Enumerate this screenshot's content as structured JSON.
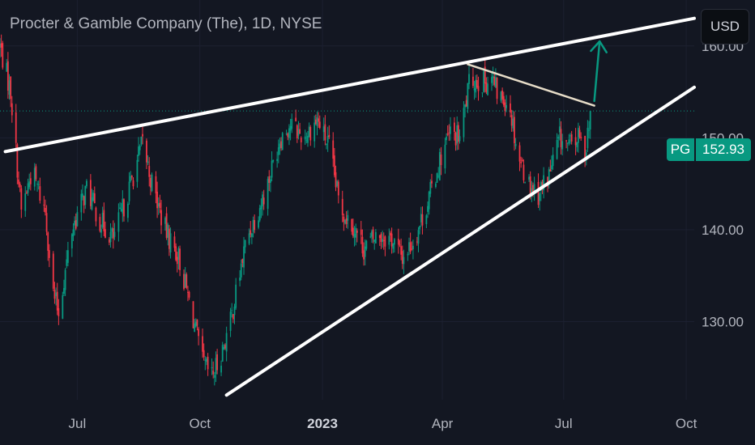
{
  "header": {
    "title": "Procter & Gamble Company (The), 1D, NYSE",
    "currency_label": "USD"
  },
  "price_tag": {
    "symbol": "PG",
    "value": "152.93"
  },
  "colors": {
    "background": "#131722",
    "up": "#089981",
    "down": "#f23645",
    "trendline": "#ffffff",
    "short_line": "#e6dcc8",
    "arrow": "#089981",
    "axis_text": "#b2b5be",
    "grid": "#1c2030"
  },
  "chart_data": {
    "type": "candlestick",
    "symbol": "PG",
    "interval": "1D",
    "exchange": "NYSE",
    "last_price": 152.93,
    "x_range": [
      "2022-05-04",
      "2023-10-07"
    ],
    "y_range": [
      121.5,
      165.0
    ],
    "y_ticks": [
      {
        "value": 130,
        "label": "130.00"
      },
      {
        "value": 140,
        "label": "140.00"
      },
      {
        "value": 150,
        "label": "150.00"
      },
      {
        "value": 160,
        "label": "160.00"
      }
    ],
    "x_ticks": [
      {
        "date": "2022-07-01",
        "label": "Jul",
        "bold": false
      },
      {
        "date": "2022-10-01",
        "label": "Oct",
        "bold": false
      },
      {
        "date": "2023-01-01",
        "label": "2023",
        "bold": true
      },
      {
        "date": "2023-04-01",
        "label": "Apr",
        "bold": false
      },
      {
        "date": "2023-07-01",
        "label": "Jul",
        "bold": false
      },
      {
        "date": "2023-10-01",
        "label": "Oct",
        "bold": false
      }
    ],
    "close_path": [
      [
        "2022-05-04",
        160.0
      ],
      [
        "2022-05-12",
        155.0
      ],
      [
        "2022-05-20",
        142.0
      ],
      [
        "2022-05-28",
        146.5
      ],
      [
        "2022-06-07",
        142.0
      ],
      [
        "2022-06-13",
        133.0
      ],
      [
        "2022-06-17",
        131.0
      ],
      [
        "2022-06-27",
        140.0
      ],
      [
        "2022-07-08",
        144.5
      ],
      [
        "2022-07-18",
        141.0
      ],
      [
        "2022-07-28",
        139.0
      ],
      [
        "2022-08-08",
        144.0
      ],
      [
        "2022-08-19",
        149.5
      ],
      [
        "2022-08-26",
        145.0
      ],
      [
        "2022-09-05",
        140.0
      ],
      [
        "2022-09-15",
        137.0
      ],
      [
        "2022-09-25",
        131.0
      ],
      [
        "2022-10-03",
        125.5
      ],
      [
        "2022-10-10",
        124.0
      ],
      [
        "2022-10-16",
        126.0
      ],
      [
        "2022-10-24",
        130.0
      ],
      [
        "2022-11-05",
        139.0
      ],
      [
        "2022-11-20",
        144.5
      ],
      [
        "2022-11-30",
        150.0
      ],
      [
        "2022-12-08",
        151.5
      ],
      [
        "2022-12-18",
        150.0
      ],
      [
        "2022-12-28",
        152.0
      ],
      [
        "2023-01-06",
        149.0
      ],
      [
        "2023-01-14",
        142.5
      ],
      [
        "2023-01-24",
        140.5
      ],
      [
        "2023-02-01",
        138.0
      ],
      [
        "2023-02-12",
        139.5
      ],
      [
        "2023-02-22",
        139.0
      ],
      [
        "2023-03-02",
        137.0
      ],
      [
        "2023-03-11",
        139.0
      ],
      [
        "2023-03-21",
        143.0
      ],
      [
        "2023-03-31",
        148.0
      ],
      [
        "2023-04-07",
        150.5
      ],
      [
        "2023-04-14",
        150.0
      ],
      [
        "2023-04-22",
        156.5
      ],
      [
        "2023-05-01",
        156.0
      ],
      [
        "2023-05-08",
        156.5
      ],
      [
        "2023-05-13",
        154.5
      ],
      [
        "2023-05-21",
        154.0
      ],
      [
        "2023-05-28",
        148.0
      ],
      [
        "2023-06-05",
        145.0
      ],
      [
        "2023-06-12",
        144.0
      ],
      [
        "2023-06-20",
        146.0
      ],
      [
        "2023-06-28",
        150.0
      ],
      [
        "2023-07-05",
        149.0
      ],
      [
        "2023-07-12",
        150.0
      ],
      [
        "2023-07-17",
        148.5
      ],
      [
        "2023-07-21",
        152.93
      ]
    ],
    "drawings": [
      {
        "kind": "trendline",
        "name": "upper-resistance",
        "from": [
          "2022-05-08",
          148.5
        ],
        "to": [
          "2023-10-07",
          163.0
        ]
      },
      {
        "kind": "trendline",
        "name": "lower-support",
        "from": [
          "2022-10-21",
          122.0
        ],
        "to": [
          "2023-10-07",
          155.5
        ]
      },
      {
        "kind": "trendline",
        "name": "pullback-line",
        "from": [
          "2023-04-20",
          158.0
        ],
        "to": [
          "2023-07-24",
          153.5
        ]
      },
      {
        "kind": "arrow",
        "name": "projected-move",
        "from": [
          "2023-07-24",
          154.0
        ],
        "to": [
          "2023-07-28",
          160.5
        ]
      }
    ]
  }
}
